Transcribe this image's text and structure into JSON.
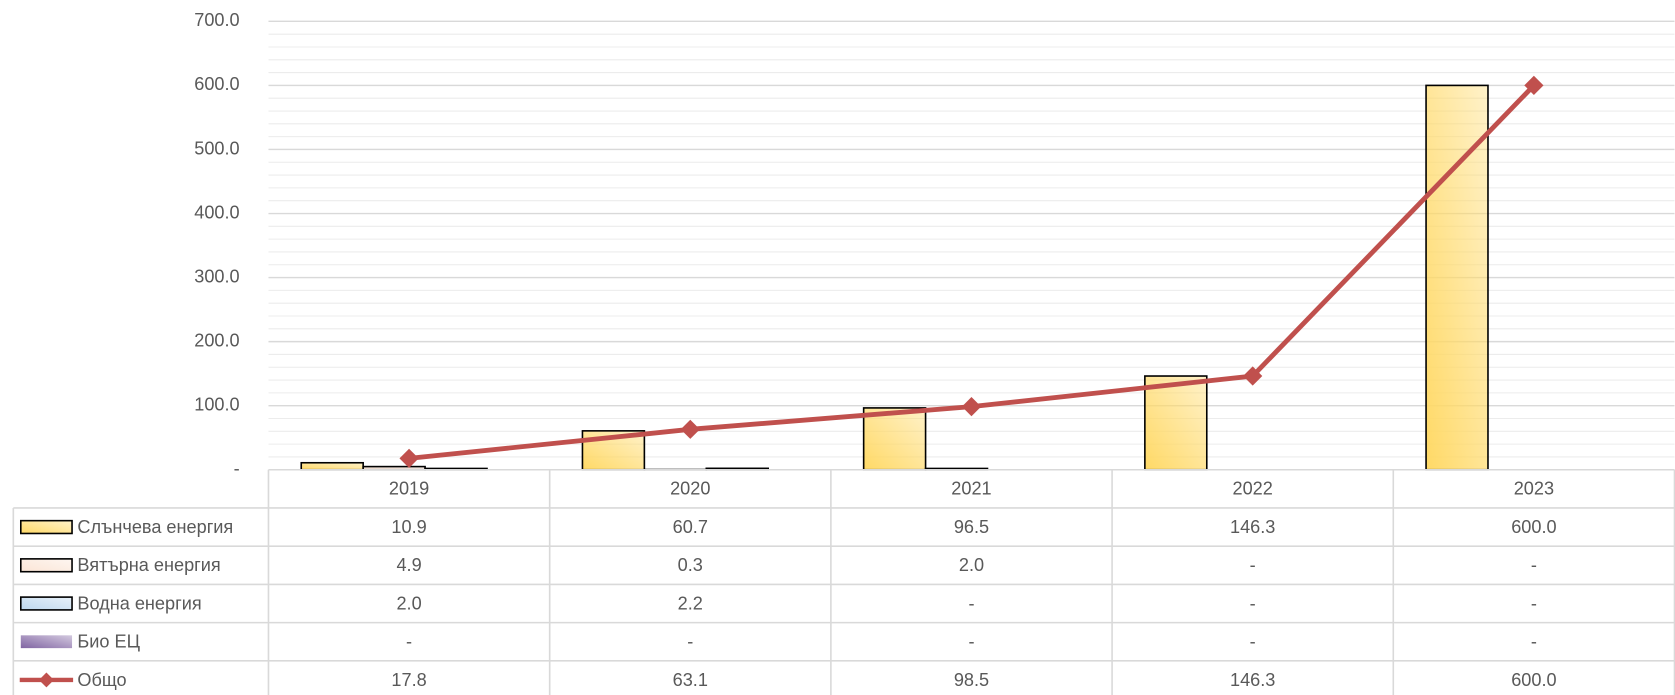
{
  "chart_data": {
    "type": "bar",
    "categories": [
      "2019",
      "2020",
      "2021",
      "2022",
      "2023"
    ],
    "series": [
      {
        "name": "Слънчева енергия",
        "type": "bar",
        "color": "#ffd966",
        "values": [
          10.9,
          60.7,
          96.5,
          146.3,
          600.0
        ],
        "value_labels": [
          "10.9",
          "60.7",
          "96.5",
          "146.3",
          "600.0"
        ]
      },
      {
        "name": "Вятърна енергия",
        "type": "bar",
        "color": "#fbe5d6",
        "values": [
          4.9,
          0.3,
          2.0,
          0,
          0
        ],
        "value_labels": [
          "4.9",
          "0.3",
          "2.0",
          "-",
          "-"
        ]
      },
      {
        "name": "Водна енергия",
        "type": "bar",
        "color": "#bdd7ee",
        "values": [
          2.0,
          2.2,
          0,
          0,
          0
        ],
        "value_labels": [
          "2.0",
          "2.2",
          "-",
          "-",
          "-"
        ]
      },
      {
        "name": "Био ЕЦ",
        "type": "bar",
        "color": "#8064a2",
        "values": [
          0,
          0,
          0,
          0,
          0
        ],
        "value_labels": [
          "-",
          "-",
          "-",
          "-",
          "-"
        ]
      },
      {
        "name": "Общо",
        "type": "line",
        "color": "#c0504d",
        "values": [
          17.8,
          63.1,
          98.5,
          146.3,
          600.0
        ],
        "value_labels": [
          "17.8",
          "63.1",
          "98.5",
          "146.3",
          "600.0"
        ]
      }
    ],
    "ylim": [
      0,
      700
    ],
    "yticks": [
      {
        "value": 0,
        "label": "-"
      },
      {
        "value": 100,
        "label": "100.0"
      },
      {
        "value": 200,
        "label": "200.0"
      },
      {
        "value": 300,
        "label": "300.0"
      },
      {
        "value": 400,
        "label": "400.0"
      },
      {
        "value": 500,
        "label": "500.0"
      },
      {
        "value": 600,
        "label": "600.0"
      },
      {
        "value": 700,
        "label": "700.0"
      }
    ],
    "grid": true,
    "minor_grid_step": 20,
    "legend": "table"
  }
}
